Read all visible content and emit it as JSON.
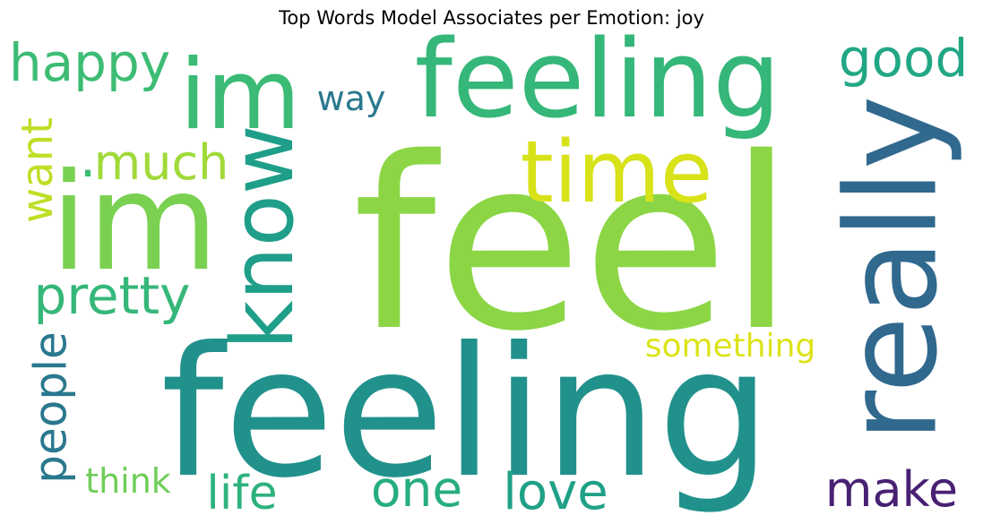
{
  "chart_data": {
    "type": "wordcloud",
    "title": "Top Words Model Associates per Emotion: joy",
    "colormap": "viridis",
    "background": "#ffffff",
    "words": [
      {
        "text": "feel",
        "color": "#8cd646"
      },
      {
        "text": "feeling",
        "color": "#21918c"
      },
      {
        "text": "feeling",
        "color": "#35b779"
      },
      {
        "text": "im",
        "color": "#3bbb75"
      },
      {
        "text": "im",
        "color": "#7ad151"
      },
      {
        "text": "really",
        "color": "#31688e"
      },
      {
        "text": "know",
        "color": "#1f9e89"
      },
      {
        "text": "time",
        "color": "#d8e219"
      },
      {
        "text": "happy",
        "color": "#3dbc74"
      },
      {
        "text": "good",
        "color": "#22a785"
      },
      {
        "text": "pretty",
        "color": "#35b779"
      },
      {
        "text": "much",
        "color": "#a0da39"
      },
      {
        "text": "want",
        "color": "#bddf26"
      },
      {
        "text": "people",
        "color": "#2a788e"
      },
      {
        "text": "life",
        "color": "#2db27d"
      },
      {
        "text": "love",
        "color": "#1fa187"
      },
      {
        "text": "one",
        "color": "#26ad81"
      },
      {
        "text": "make",
        "color": "#482173"
      },
      {
        "text": "something",
        "color": "#dde318"
      },
      {
        "text": "think",
        "color": "#6ece58"
      },
      {
        "text": "way",
        "color": "#2a788e"
      },
      {
        "text": ".",
        "color": "#3bbb75"
      }
    ]
  }
}
